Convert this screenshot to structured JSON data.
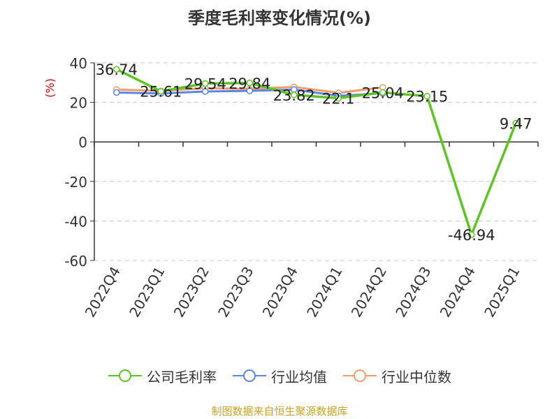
{
  "chart_data": {
    "type": "line",
    "title": "季度毛利率变化情况(%)",
    "ylabel": "(%)",
    "xlabel": "",
    "categories": [
      "2022Q4",
      "2023Q1",
      "2023Q2",
      "2023Q3",
      "2023Q4",
      "2024Q1",
      "2024Q2",
      "2024Q3",
      "2024Q4",
      "2025Q1"
    ],
    "ylim": [
      -60,
      40
    ],
    "yticks": [
      "40",
      "20",
      "0",
      "-20",
      "-40",
      "-60"
    ],
    "grid": true,
    "legend_position": "bottom",
    "series": [
      {
        "name": "公司毛利率",
        "color": "#5dc423",
        "values": [
          36.74,
          25.61,
          29.54,
          29.84,
          23.82,
          22.1,
          25.04,
          23.15,
          -46.94,
          9.47
        ],
        "labels": [
          "36.74",
          "25.61",
          "29.54",
          "29.84",
          "23.82",
          "22.1",
          "25.04",
          "23.15",
          "-46.94",
          "9.47"
        ]
      },
      {
        "name": "行业均值",
        "color": "#5b86e5",
        "values": [
          25.0,
          24.5,
          25.5,
          25.8,
          26.5,
          23.3,
          24.6,
          null,
          null,
          null
        ]
      },
      {
        "name": "行业中位数",
        "color": "#f39c6b",
        "values": [
          26.5,
          25.8,
          27.2,
          26.8,
          27.8,
          24.8,
          27.6,
          null,
          null,
          null
        ]
      }
    ]
  },
  "source": "制图数据来自恒生聚源数据库"
}
